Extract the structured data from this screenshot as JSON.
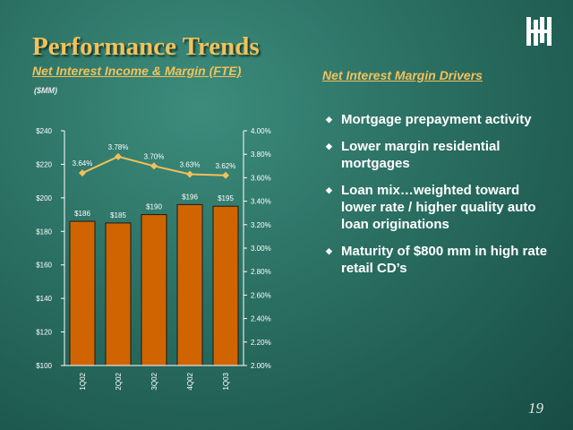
{
  "slide": {
    "title": "Performance Trends",
    "subtitle_left": "Net Interest Income & Margin (FTE)",
    "units": "($MM)",
    "subtitle_right": "Net Interest Margin Drivers",
    "page_number": "19"
  },
  "drivers": [
    "Mortgage prepayment activity",
    "Lower margin residential mortgages",
    "Loan mix…weighted toward lower rate / higher quality auto loan originations",
    "Maturity of $800 mm in high rate retail CD’s"
  ],
  "icons": {
    "logo": "company-logo-icon",
    "bullet": "diamond-bullet-icon"
  },
  "colors": {
    "title": "#f3c15a",
    "bar": "#d06400",
    "line": "#f3c15a",
    "text": "#ffffff"
  },
  "chart_data": {
    "type": "bar",
    "categories": [
      "1Q02",
      "2Q02",
      "3Q02",
      "4Q02",
      "1Q03"
    ],
    "series": [
      {
        "type": "bar",
        "axis": "left",
        "values": [
          186,
          185,
          190,
          196,
          195
        ],
        "labels": [
          "$186",
          "$185",
          "$190",
          "$196",
          "$195"
        ]
      },
      {
        "type": "line",
        "axis": "right",
        "values": [
          3.64,
          3.78,
          3.7,
          3.63,
          3.62
        ],
        "labels": [
          "3.64%",
          "3.78%",
          "3.70%",
          "3.63%",
          "3.62%"
        ]
      }
    ],
    "y_left": {
      "lim": [
        100,
        240
      ],
      "ticks": [
        "$100",
        "$120",
        "$140",
        "$160",
        "$180",
        "$200",
        "$220",
        "$240"
      ]
    },
    "y_right": {
      "lim": [
        2.0,
        4.0
      ],
      "ticks": [
        "2.00%",
        "2.20%",
        "2.40%",
        "2.60%",
        "2.80%",
        "3.00%",
        "3.20%",
        "3.40%",
        "3.60%",
        "3.80%",
        "4.00%"
      ]
    },
    "grid": false,
    "legend": "none"
  }
}
